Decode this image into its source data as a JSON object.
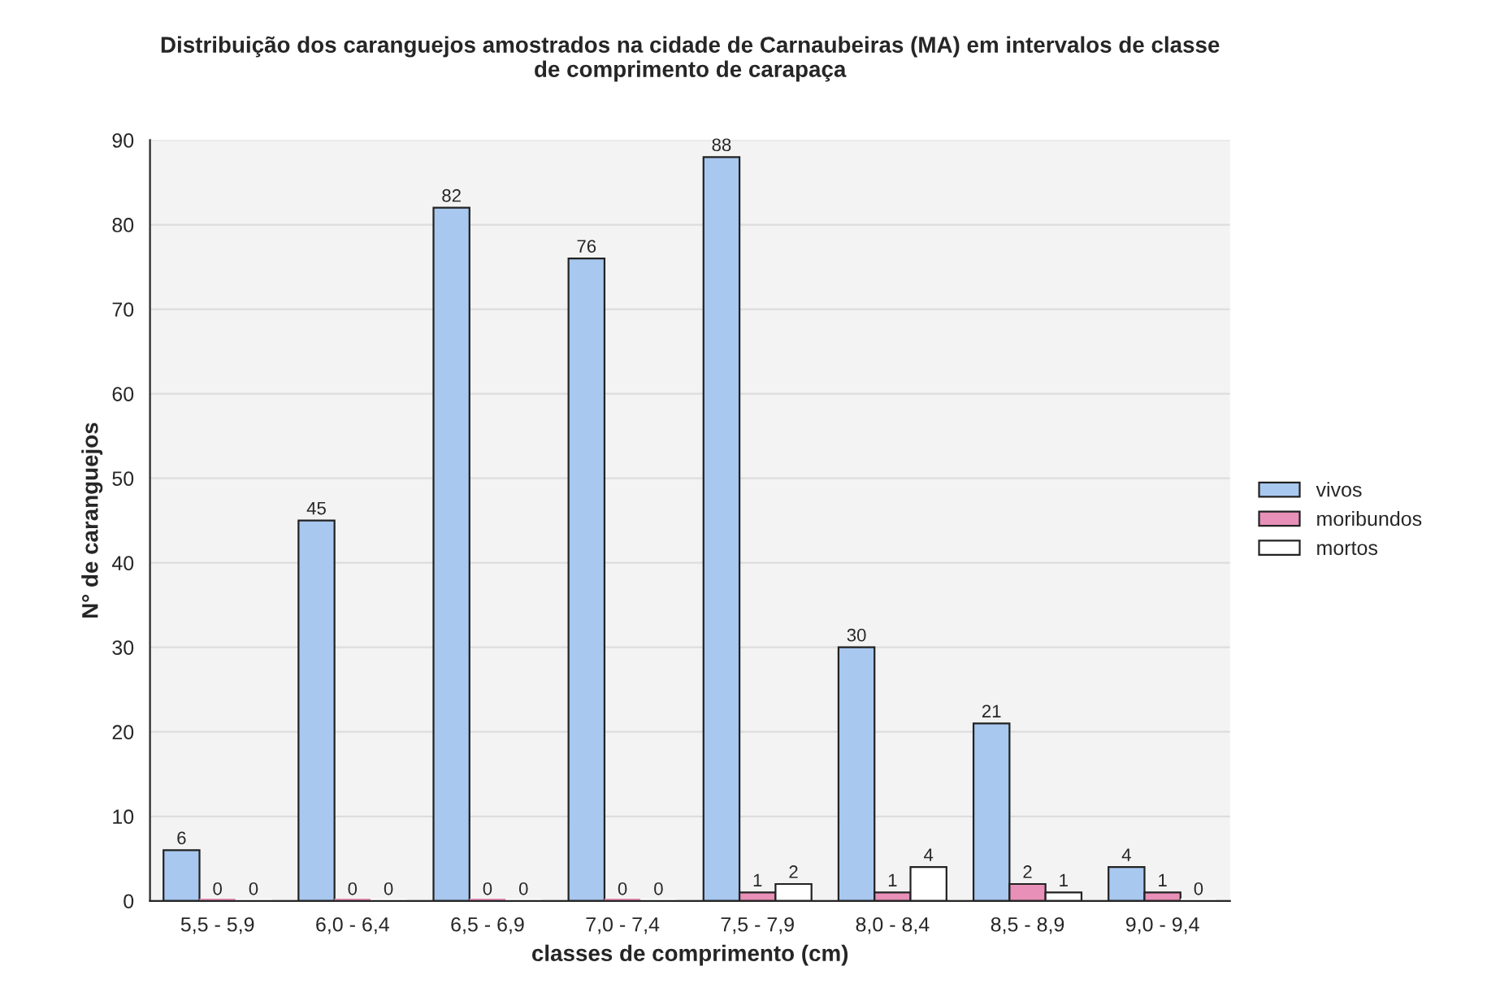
{
  "chart_data": {
    "type": "bar",
    "title": "Distribuição dos caranguejos amostrados na cidade de Carnaubeiras (MA) em intervalos de classe\nde comprimento de carapaça",
    "xlabel": "classes de comprimento (cm)",
    "ylabel": "N° de caranguejos",
    "categories": [
      "5,5 - 5,9",
      "6,0 - 6,4",
      "6,5 - 6,9",
      "7,0 - 7,4",
      "7,5 - 7,9",
      "8,0 - 8,4",
      "8,5 - 8,9",
      "9,0 - 9,4"
    ],
    "series": [
      {
        "name": "vivos",
        "color": "#a8c8f0",
        "values": [
          6,
          45,
          82,
          76,
          88,
          30,
          21,
          4
        ]
      },
      {
        "name": "moribundos",
        "color": "#e890b8",
        "values": [
          0,
          0,
          0,
          0,
          1,
          1,
          2,
          1
        ]
      },
      {
        "name": "mortos",
        "color": "#ffffff",
        "values": [
          0,
          0,
          0,
          0,
          2,
          4,
          1,
          0
        ]
      }
    ],
    "ylim": [
      0,
      90
    ],
    "yticks": [
      0,
      10,
      20,
      30,
      40,
      50,
      60,
      70,
      80,
      90
    ],
    "grid": "y",
    "legend": "right",
    "data_labels": true
  }
}
